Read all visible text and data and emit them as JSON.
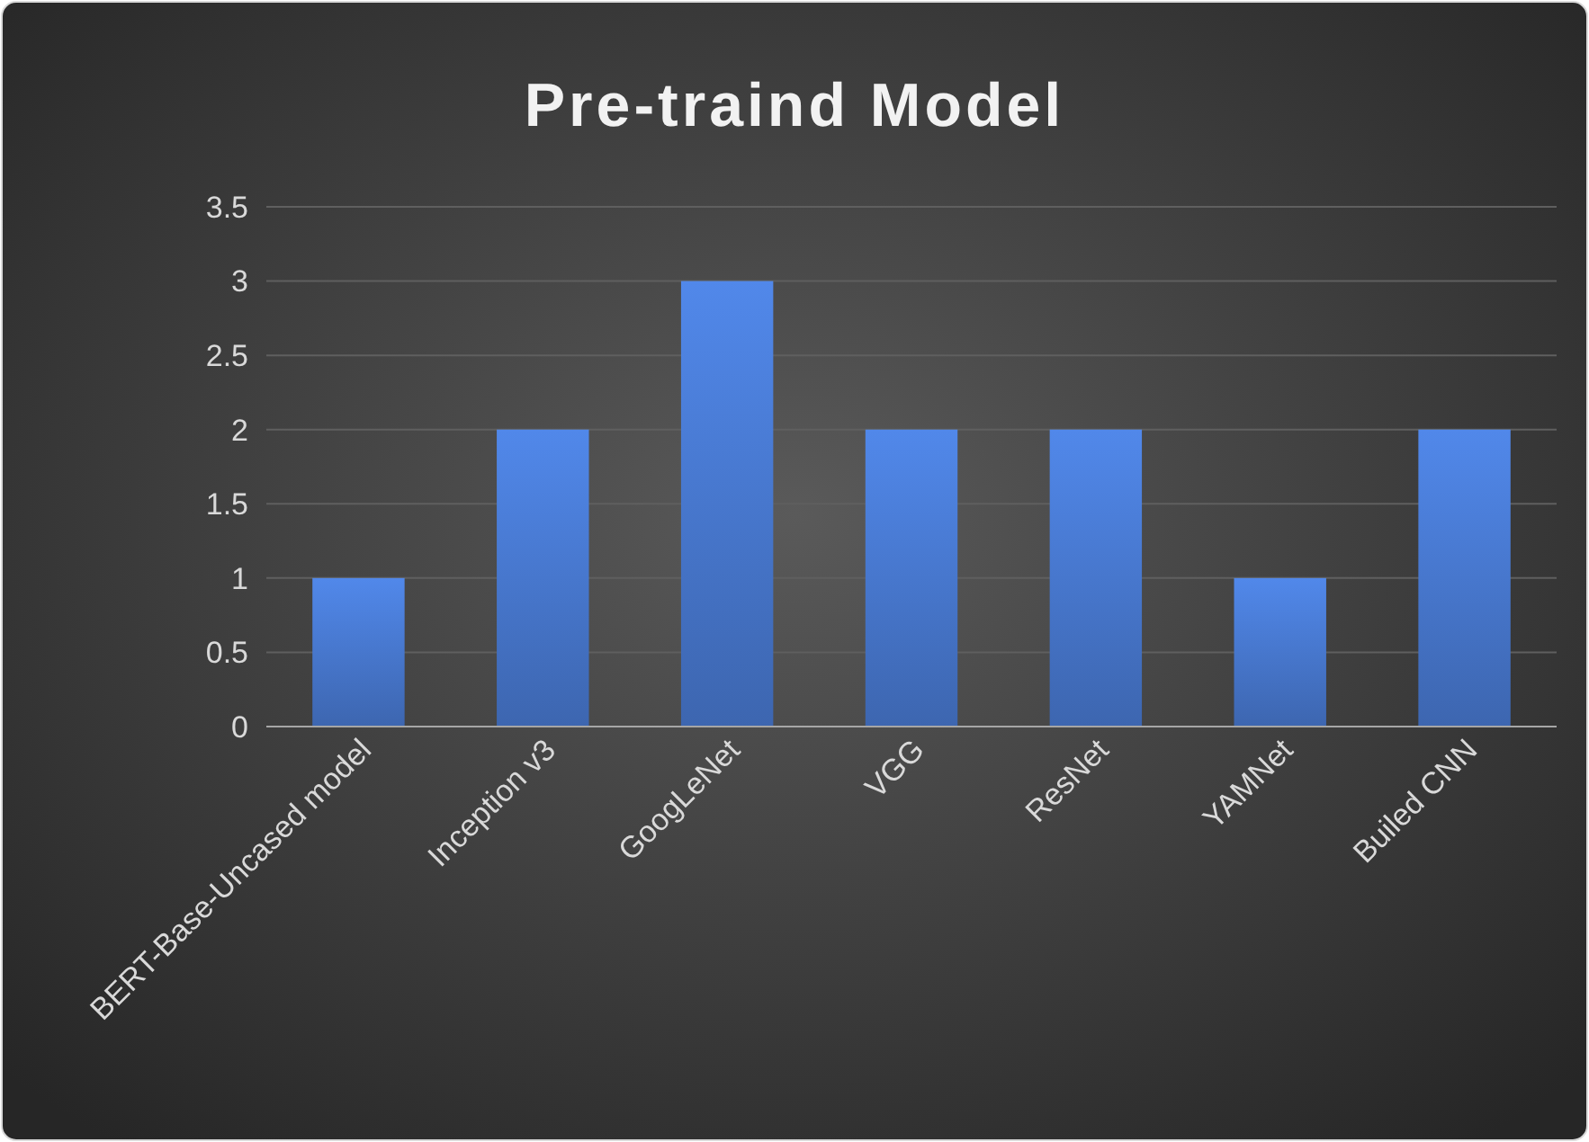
{
  "chart_data": {
    "type": "bar",
    "title": "Pre-traind Model",
    "categories": [
      "BERT-Base-Uncased model",
      "Inception v3",
      "GoogLeNet",
      "VGG",
      "ResNet",
      "YAMNet",
      "Builed CNN"
    ],
    "values": [
      1,
      2,
      3,
      2,
      2,
      1,
      2
    ],
    "color": "#4472c4",
    "ylim": [
      0,
      3.5
    ],
    "yticks": [
      0,
      0.5,
      1,
      1.5,
      2,
      2.5,
      3,
      3.5
    ],
    "grid": "y"
  }
}
